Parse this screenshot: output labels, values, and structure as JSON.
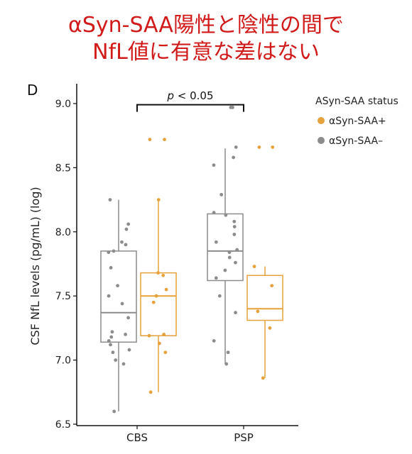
{
  "headline": {
    "line1": "αSyn-SAA陽性と陰性の間で",
    "line2": "NfL値に有意な差はない"
  },
  "chart_data": {
    "type": "box",
    "panel_label": "D",
    "ylabel": "CSF NfL levels (pg/mL) (log)",
    "xlabel": "",
    "ylim": [
      6.5,
      9.1
    ],
    "yticks": [
      "6.5",
      "7.0",
      "7.5",
      "8.0",
      "8.5",
      "9.0"
    ],
    "categories": [
      "CBS",
      "PSP"
    ],
    "grid": false,
    "legend": {
      "title": "ASyn-SAA status",
      "placement": "top-right",
      "entries": [
        "αSyn-SAA+",
        "αSyn-SAA–"
      ]
    },
    "annotation": {
      "text_italic": "p",
      "text_rest": " < 0.05"
    },
    "colors": {
      "positive": "#E6A23C",
      "negative": "#8C8C8C"
    },
    "series": [
      {
        "name": "αSyn-SAA–",
        "color": "#8C8C8C",
        "boxes": [
          {
            "category": "CBS",
            "min": 6.6,
            "q1": 7.14,
            "median": 7.37,
            "q3": 7.85,
            "max": 8.25,
            "points": [
              6.6,
              6.97,
              7.0,
              7.06,
              7.08,
              7.12,
              7.15,
              7.18,
              7.2,
              7.22,
              7.33,
              7.44,
              7.5,
              7.58,
              7.72,
              7.84,
              7.85,
              7.9,
              7.92,
              8.02,
              8.06,
              8.25
            ]
          },
          {
            "category": "PSP",
            "min": 6.97,
            "q1": 7.62,
            "median": 7.85,
            "q3": 8.14,
            "max": 8.65,
            "points": [
              6.97,
              7.06,
              7.15,
              7.37,
              7.5,
              7.64,
              7.7,
              7.76,
              7.8,
              7.84,
              7.86,
              7.92,
              7.98,
              8.04,
              8.08,
              8.13,
              8.15,
              8.29,
              8.52,
              8.58,
              8.66,
              8.97,
              8.97
            ]
          }
        ]
      },
      {
        "name": "αSyn-SAA+",
        "color": "#E6A23C",
        "boxes": [
          {
            "category": "CBS",
            "min": 6.75,
            "q1": 7.19,
            "median": 7.5,
            "q3": 7.68,
            "max": 8.25,
            "points": [
              6.75,
              7.06,
              7.13,
              7.19,
              7.2,
              7.45,
              7.5,
              7.55,
              7.66,
              7.68,
              8.25,
              8.72,
              8.72
            ]
          },
          {
            "category": "PSP",
            "min": 6.86,
            "q1": 7.31,
            "median": 7.4,
            "q3": 7.66,
            "max": 7.73,
            "points": [
              6.86,
              7.25,
              7.38,
              7.58,
              7.73,
              8.66,
              8.66
            ]
          }
        ]
      }
    ]
  }
}
